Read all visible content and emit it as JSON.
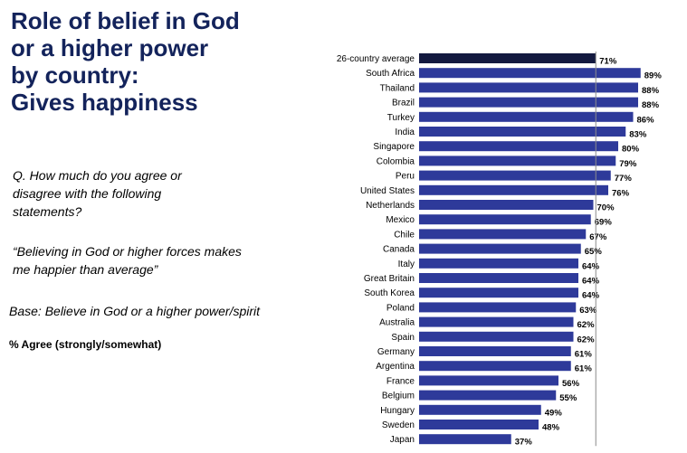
{
  "title_lines": [
    "Role of belief in God",
    "or a higher power",
    "by country:",
    "Gives happiness"
  ],
  "question": "Q. How much do you agree or disagree with the following statements?",
  "statement": "“Believing in God or higher forces makes me happier than average”",
  "base": "Base: Believe in God or a higher power/spirit",
  "agree_note": "% Agree (strongly/somewhat)",
  "colors": {
    "bar": "#2e3a9a",
    "average_bar": "#13193f",
    "title": "#13235b",
    "reference_line": "#8c8c8c"
  },
  "chart_data": {
    "type": "bar",
    "orientation": "horizontal",
    "title": "Role of belief in God or a higher power by country: Gives happiness",
    "xlabel": "",
    "ylabel": "",
    "value_suffix": "%",
    "reference_value": 71,
    "categories": [
      "26-country average",
      "South Africa",
      "Thailand",
      "Brazil",
      "Turkey",
      "India",
      "Singapore",
      "Colombia",
      "Peru",
      "United States",
      "Netherlands",
      "Mexico",
      "Chile",
      "Canada",
      "Italy",
      "Great Britain",
      "South Korea",
      "Poland",
      "Australia",
      "Spain",
      "Germany",
      "Argentina",
      "France",
      "Belgium",
      "Hungary",
      "Sweden",
      "Japan"
    ],
    "values": [
      71,
      89,
      88,
      88,
      86,
      83,
      80,
      79,
      77,
      76,
      70,
      69,
      67,
      65,
      64,
      64,
      64,
      63,
      62,
      62,
      61,
      61,
      56,
      55,
      49,
      48,
      37
    ],
    "value_labels": [
      "71%",
      "89%",
      "88%",
      "88%",
      "86%",
      "83%",
      "80%",
      "79%",
      "77%",
      "76%",
      "70%",
      "69%",
      "67%",
      "65%",
      "64%",
      "64%",
      "64%",
      "63%",
      "62%",
      "62%",
      "61%",
      "61%",
      "56%",
      "55%",
      "49%",
      "48%",
      "37%"
    ]
  }
}
